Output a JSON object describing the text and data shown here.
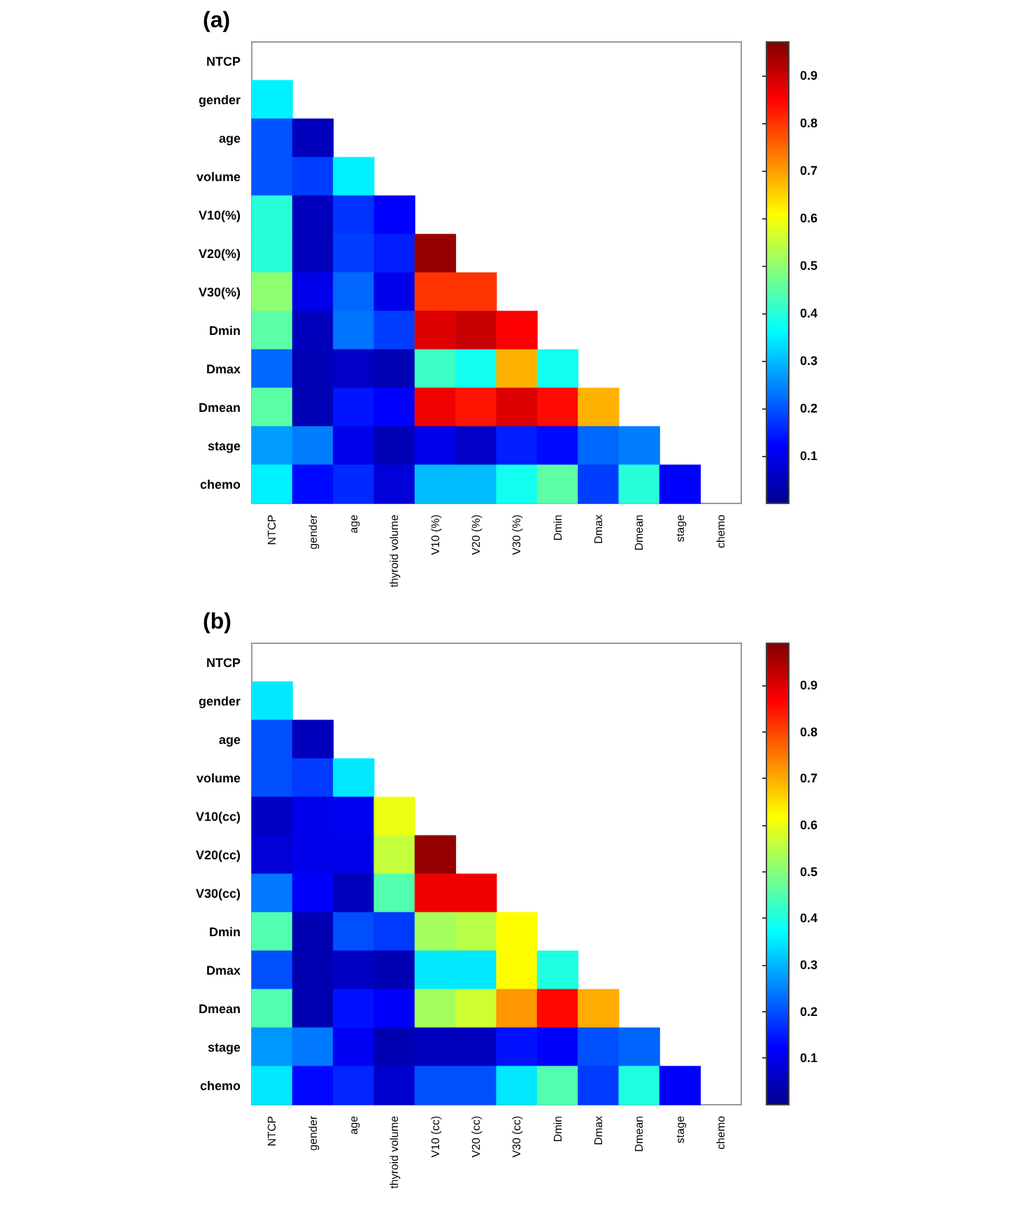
{
  "chart_data": [
    {
      "type": "heatmap",
      "title": "(a)",
      "categories": [
        "NTCP",
        "gender",
        "age",
        "thyroid volume",
        "V10 (%)",
        "V20 (%)",
        "V30 (%)",
        "Dmin",
        "Dmax",
        "Dmean",
        "stage",
        "chemo"
      ],
      "y_categories": [
        "NTCP",
        "gender",
        "age",
        "volume",
        "V10(%)",
        "V20(%)",
        "V30(%)",
        "Dmin",
        "Dmax",
        "Dmean",
        "stage",
        "chemo"
      ],
      "cells": [
        [
          null,
          null,
          null,
          null,
          null,
          null,
          null,
          null,
          null,
          null,
          null,
          null
        ],
        [
          0.35,
          null,
          null,
          null,
          null,
          null,
          null,
          null,
          null,
          null,
          null,
          null
        ],
        [
          0.2,
          0.05,
          null,
          null,
          null,
          null,
          null,
          null,
          null,
          null,
          null,
          null
        ],
        [
          0.2,
          0.18,
          0.35,
          null,
          null,
          null,
          null,
          null,
          null,
          null,
          null,
          null
        ],
        [
          0.4,
          0.05,
          0.17,
          0.12,
          null,
          null,
          null,
          null,
          null,
          null,
          null,
          null
        ],
        [
          0.4,
          0.05,
          0.18,
          0.15,
          0.95,
          null,
          null,
          null,
          null,
          null,
          null,
          null
        ],
        [
          0.5,
          0.1,
          0.22,
          0.1,
          0.8,
          0.8,
          null,
          null,
          null,
          null,
          null,
          null
        ],
        [
          0.45,
          0.05,
          0.23,
          0.18,
          0.88,
          0.9,
          0.85,
          null,
          null,
          null,
          null,
          null
        ],
        [
          0.22,
          0.04,
          0.06,
          0.04,
          0.42,
          0.38,
          0.68,
          0.38,
          null,
          null,
          null,
          null
        ],
        [
          0.45,
          0.04,
          0.14,
          0.12,
          0.86,
          0.83,
          0.88,
          0.84,
          0.68,
          null,
          null,
          null
        ],
        [
          0.27,
          0.24,
          0.1,
          0.04,
          0.1,
          0.06,
          0.15,
          0.13,
          0.22,
          0.24,
          null,
          null
        ],
        [
          0.35,
          0.13,
          0.16,
          0.08,
          0.3,
          0.3,
          0.38,
          0.45,
          0.18,
          0.4,
          0.12,
          null
        ]
      ],
      "clim": [
        0,
        0.97
      ],
      "cticks": [
        0.1,
        0.2,
        0.3,
        0.4,
        0.5,
        0.6,
        0.7,
        0.8,
        0.9
      ]
    },
    {
      "type": "heatmap",
      "title": "(b)",
      "categories": [
        "NTCP",
        "gender",
        "age",
        "thyroid volume",
        "V10 (cc)",
        "V20 (cc)",
        "V30 (cc)",
        "Dmin",
        "Dmax",
        "Dmean",
        "stage",
        "chemo"
      ],
      "y_categories": [
        "NTCP",
        "gender",
        "age",
        "volume",
        "V10(cc)",
        "V20(cc)",
        "V30(cc)",
        "Dmin",
        "Dmax",
        "Dmean",
        "stage",
        "chemo"
      ],
      "cells": [
        [
          null,
          null,
          null,
          null,
          null,
          null,
          null,
          null,
          null,
          null,
          null,
          null
        ],
        [
          0.35,
          null,
          null,
          null,
          null,
          null,
          null,
          null,
          null,
          null,
          null,
          null
        ],
        [
          0.2,
          0.05,
          null,
          null,
          null,
          null,
          null,
          null,
          null,
          null,
          null,
          null
        ],
        [
          0.2,
          0.18,
          0.35,
          null,
          null,
          null,
          null,
          null,
          null,
          null,
          null,
          null
        ],
        [
          0.06,
          0.1,
          0.11,
          0.6,
          null,
          null,
          null,
          null,
          null,
          null,
          null,
          null
        ],
        [
          0.08,
          0.1,
          0.1,
          0.56,
          0.97,
          null,
          null,
          null,
          null,
          null,
          null,
          null
        ],
        [
          0.24,
          0.12,
          0.05,
          0.45,
          0.88,
          0.88,
          null,
          null,
          null,
          null,
          null,
          null
        ],
        [
          0.45,
          0.04,
          0.2,
          0.18,
          0.53,
          0.55,
          0.62,
          null,
          null,
          null,
          null,
          null
        ],
        [
          0.2,
          0.04,
          0.06,
          0.04,
          0.35,
          0.35,
          0.62,
          0.4,
          null,
          null,
          null,
          null
        ],
        [
          0.45,
          0.04,
          0.14,
          0.12,
          0.53,
          0.57,
          0.72,
          0.86,
          0.7,
          null,
          null,
          null
        ],
        [
          0.27,
          0.24,
          0.11,
          0.04,
          0.05,
          0.05,
          0.14,
          0.12,
          0.2,
          0.22,
          null,
          null
        ],
        [
          0.35,
          0.13,
          0.16,
          0.07,
          0.2,
          0.2,
          0.35,
          0.45,
          0.18,
          0.4,
          0.12,
          null
        ]
      ],
      "clim": [
        0,
        0.99
      ],
      "cticks": [
        0.1,
        0.2,
        0.3,
        0.4,
        0.5,
        0.6,
        0.7,
        0.8,
        0.9
      ]
    }
  ]
}
